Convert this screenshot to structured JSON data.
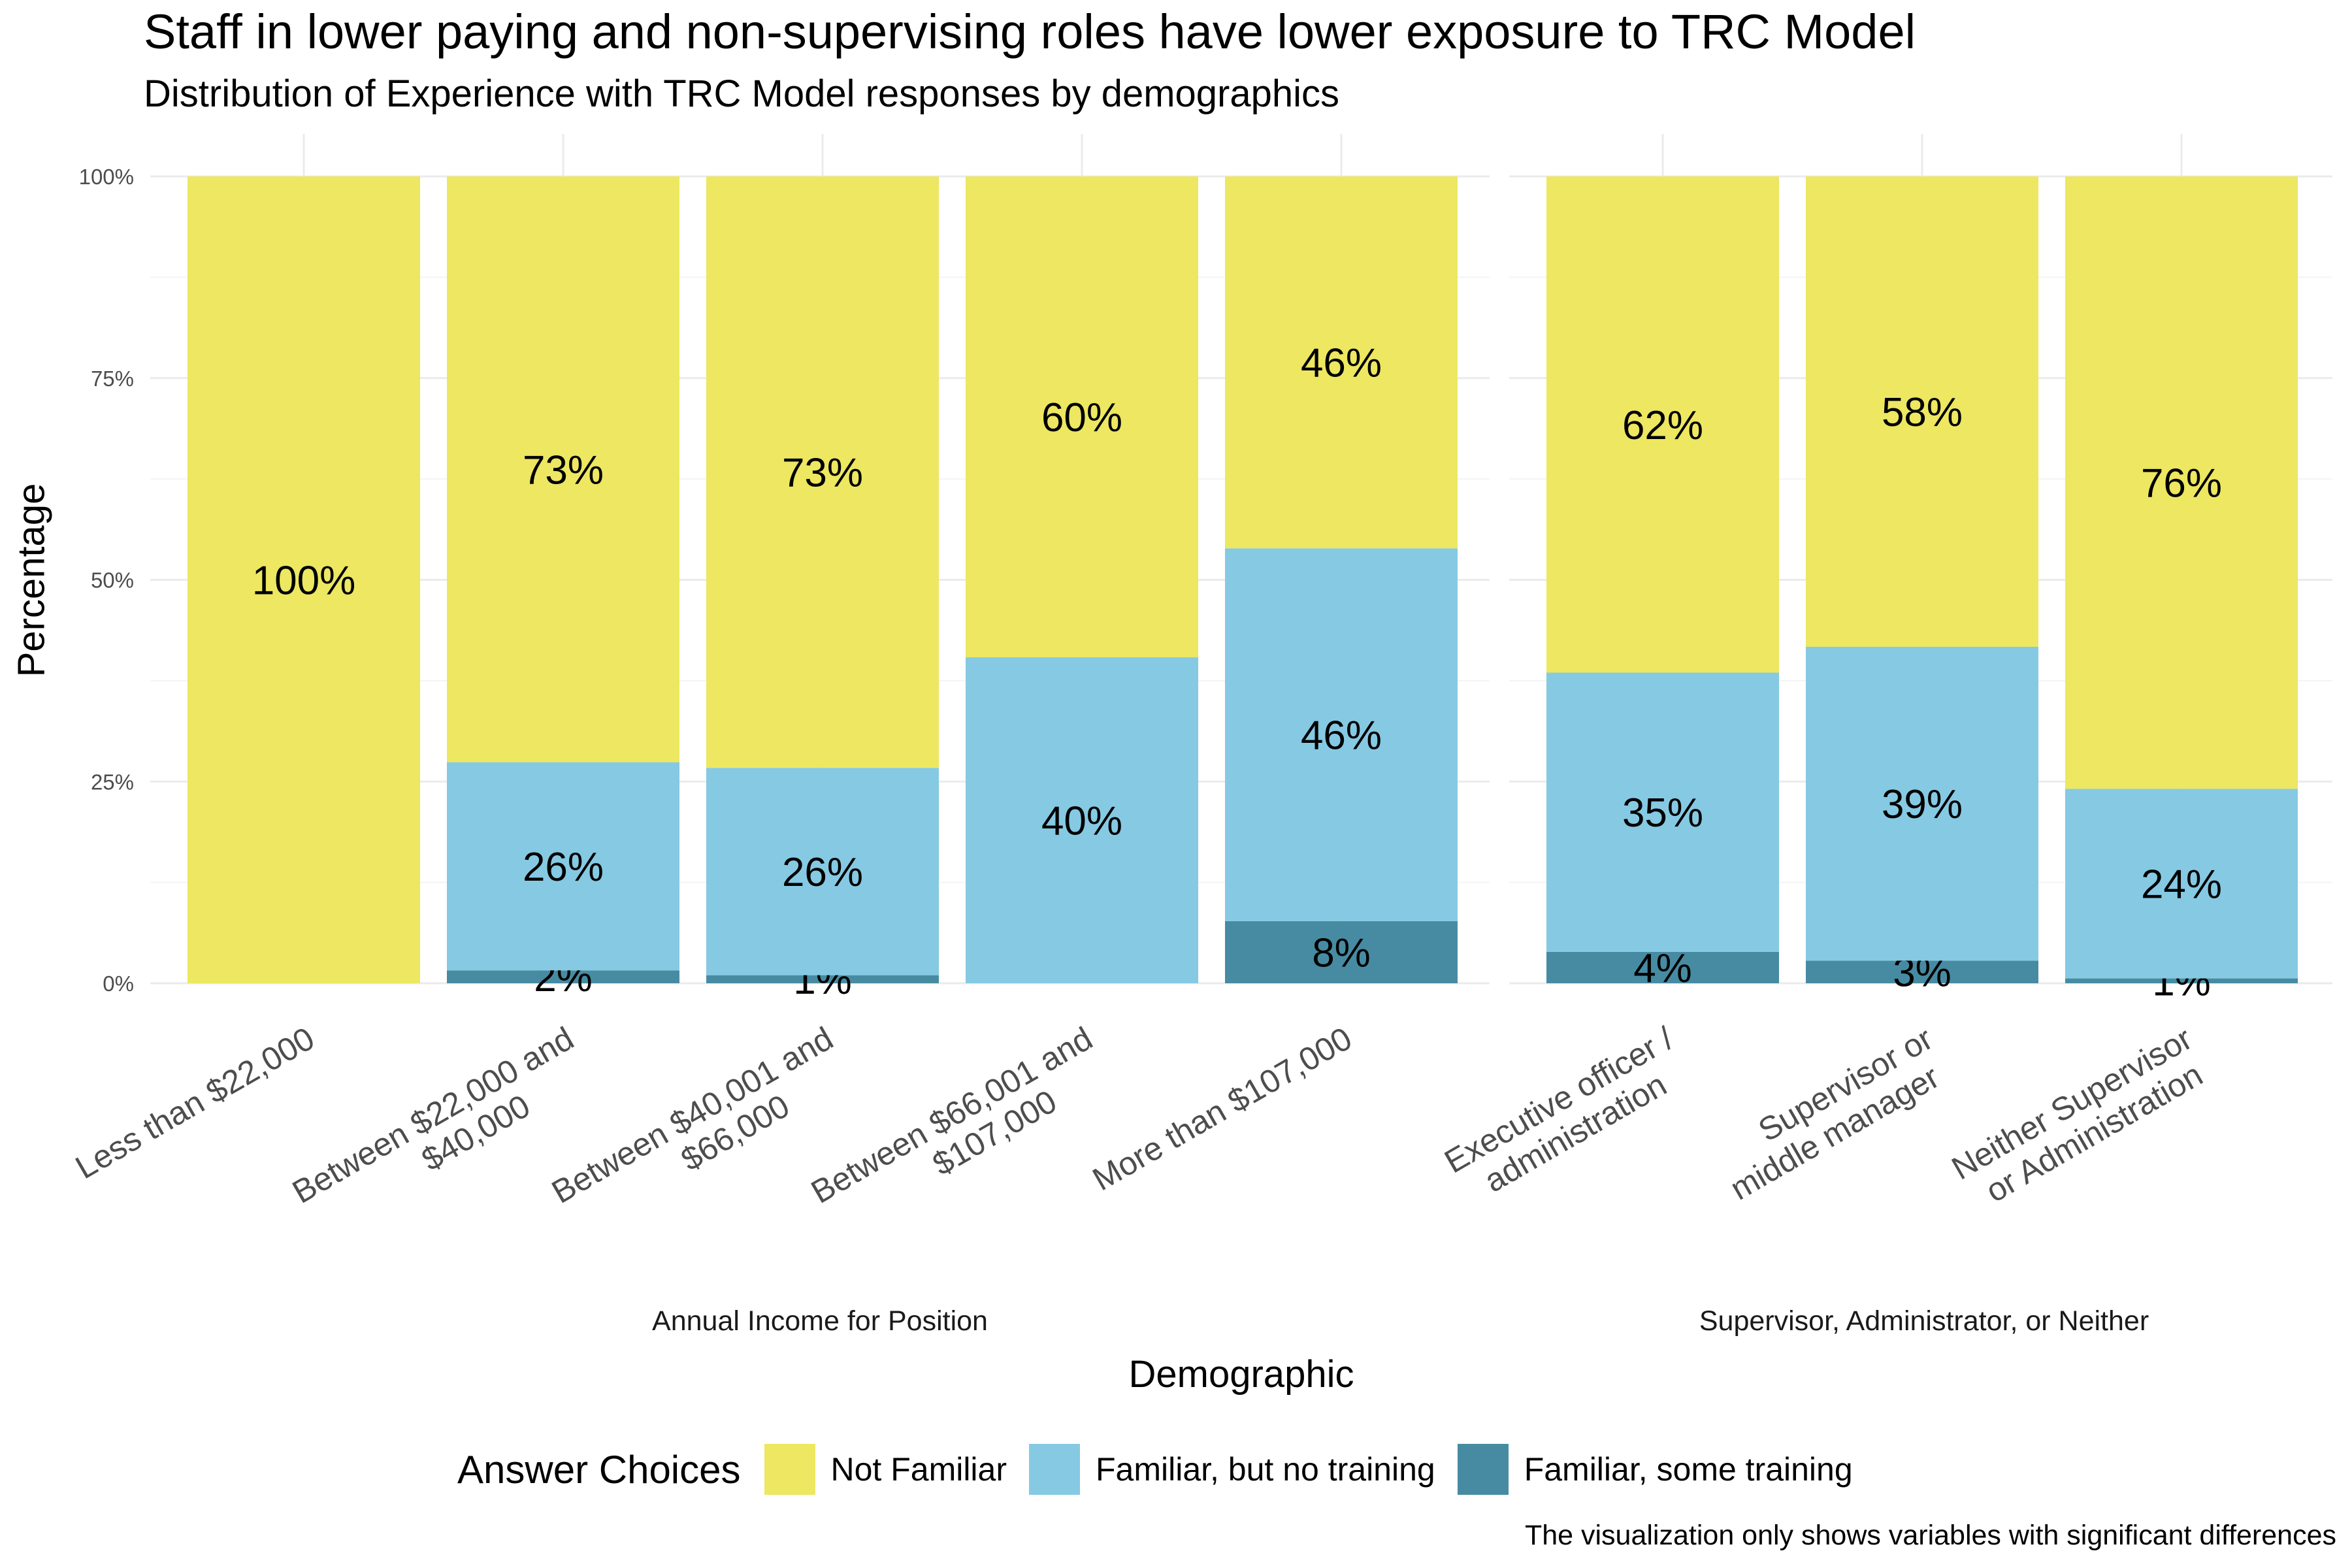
{
  "chart_data": {
    "type": "bar",
    "stacked": true,
    "title": "Staff in lower paying and non-supervising roles have lower exposure to TRC Model",
    "subtitle": "Distribution of Experience with TRC Model responses by demographics",
    "ylabel": "Percentage",
    "xlabel": "Demographic",
    "caption": "The visualization only shows variables with significant differences",
    "ylim": [
      0,
      100
    ],
    "yticks": [
      "0%",
      "25%",
      "50%",
      "75%",
      "100%"
    ],
    "legend": {
      "title": "Answer Choices",
      "position": "bottom",
      "items": [
        {
          "name": "Not Familiar",
          "color": "#EDE761"
        },
        {
          "name": "Familiar, but no training",
          "color": "#86C9E3"
        },
        {
          "name": "Familiar, some training",
          "color": "#478BA2"
        }
      ]
    },
    "facets": [
      {
        "label": "Annual Income for Position",
        "categories": [
          {
            "lines": [
              "Less than $22,000"
            ]
          },
          {
            "lines": [
              "Between $22,000 and",
              "$40,000"
            ]
          },
          {
            "lines": [
              "Between $40,001 and",
              "$66,000"
            ]
          },
          {
            "lines": [
              "Between $66,001 and",
              "$107,000"
            ]
          },
          {
            "lines": [
              "More than $107,000"
            ]
          }
        ],
        "series": [
          {
            "name": "Familiar, some training",
            "values": [
              0,
              1.6,
              1.0,
              0,
              7.7
            ],
            "labels": [
              "",
              "2%",
              "1%",
              "",
              "8%"
            ]
          },
          {
            "name": "Familiar, but no training",
            "values": [
              0,
              25.8,
              25.7,
              40.4,
              46.2
            ],
            "labels": [
              "",
              "26%",
              "26%",
              "40%",
              "46%"
            ]
          },
          {
            "name": "Not Familiar",
            "values": [
              100,
              72.6,
              73.3,
              59.6,
              46.1
            ],
            "labels": [
              "100%",
              "73%",
              "73%",
              "60%",
              "46%"
            ]
          }
        ]
      },
      {
        "label": "Supervisor, Administrator, or Neither",
        "categories": [
          {
            "lines": [
              "Executive officer /",
              "administration"
            ]
          },
          {
            "lines": [
              "Supervisor or",
              "middle manager"
            ]
          },
          {
            "lines": [
              "Neither Supervisor",
              "or Administration"
            ]
          }
        ],
        "series": [
          {
            "name": "Familiar, some training",
            "values": [
              3.9,
              2.8,
              0.6
            ],
            "labels": [
              "4%",
              "3%",
              "1%"
            ]
          },
          {
            "name": "Familiar, but no training",
            "values": [
              34.6,
              38.9,
              23.5
            ],
            "labels": [
              "35%",
              "39%",
              "24%"
            ]
          },
          {
            "name": "Not Familiar",
            "values": [
              61.5,
              58.3,
              75.9
            ],
            "labels": [
              "62%",
              "58%",
              "76%"
            ]
          }
        ]
      }
    ]
  }
}
